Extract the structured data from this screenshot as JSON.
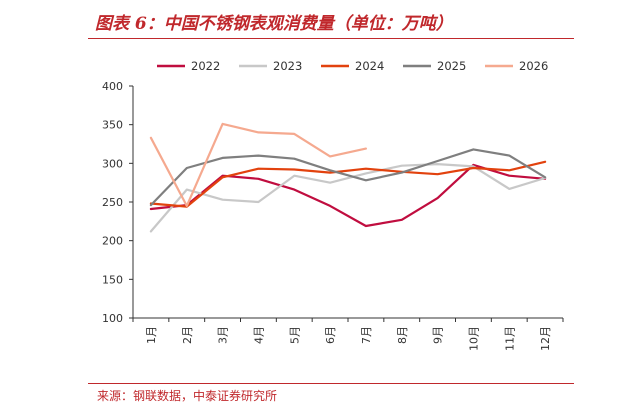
{
  "figure": {
    "title": "图表 6：中国不锈钢表观消费量（单位：万吨）",
    "source": "来源：钢联数据，中泰证券研究所"
  },
  "chart_data": {
    "type": "line",
    "categories": [
      "1月",
      "2月",
      "3月",
      "4月",
      "5月",
      "6月",
      "7月",
      "8月",
      "9月",
      "10月",
      "11月",
      "12月"
    ],
    "ylim": [
      100,
      400
    ],
    "yticks": [
      100,
      150,
      200,
      250,
      300,
      350,
      400
    ],
    "grid": false,
    "legend_position": "top",
    "series": [
      {
        "name": "2022",
        "color": "#c00d3f",
        "values": [
          241,
          246,
          284,
          280,
          266,
          245,
          219,
          227,
          255,
          298,
          284,
          280
        ]
      },
      {
        "name": "2023",
        "color": "#c8c8c8",
        "values": [
          212,
          266,
          253,
          250,
          284,
          275,
          287,
          297,
          299,
          296,
          267,
          281
        ]
      },
      {
        "name": "2024",
        "color": "#e2420e",
        "values": [
          248,
          244,
          282,
          293,
          292,
          288,
          293,
          289,
          286,
          294,
          291,
          302
        ]
      },
      {
        "name": "2025",
        "color": "#7f7f7f",
        "values": [
          246,
          294,
          307,
          310,
          306,
          291,
          278,
          288,
          303,
          318,
          310,
          282
        ]
      },
      {
        "name": "2026",
        "color": "#f5a98f",
        "values": [
          333,
          245,
          351,
          340,
          338,
          309,
          319,
          null,
          null,
          null,
          null,
          null
        ]
      }
    ]
  }
}
